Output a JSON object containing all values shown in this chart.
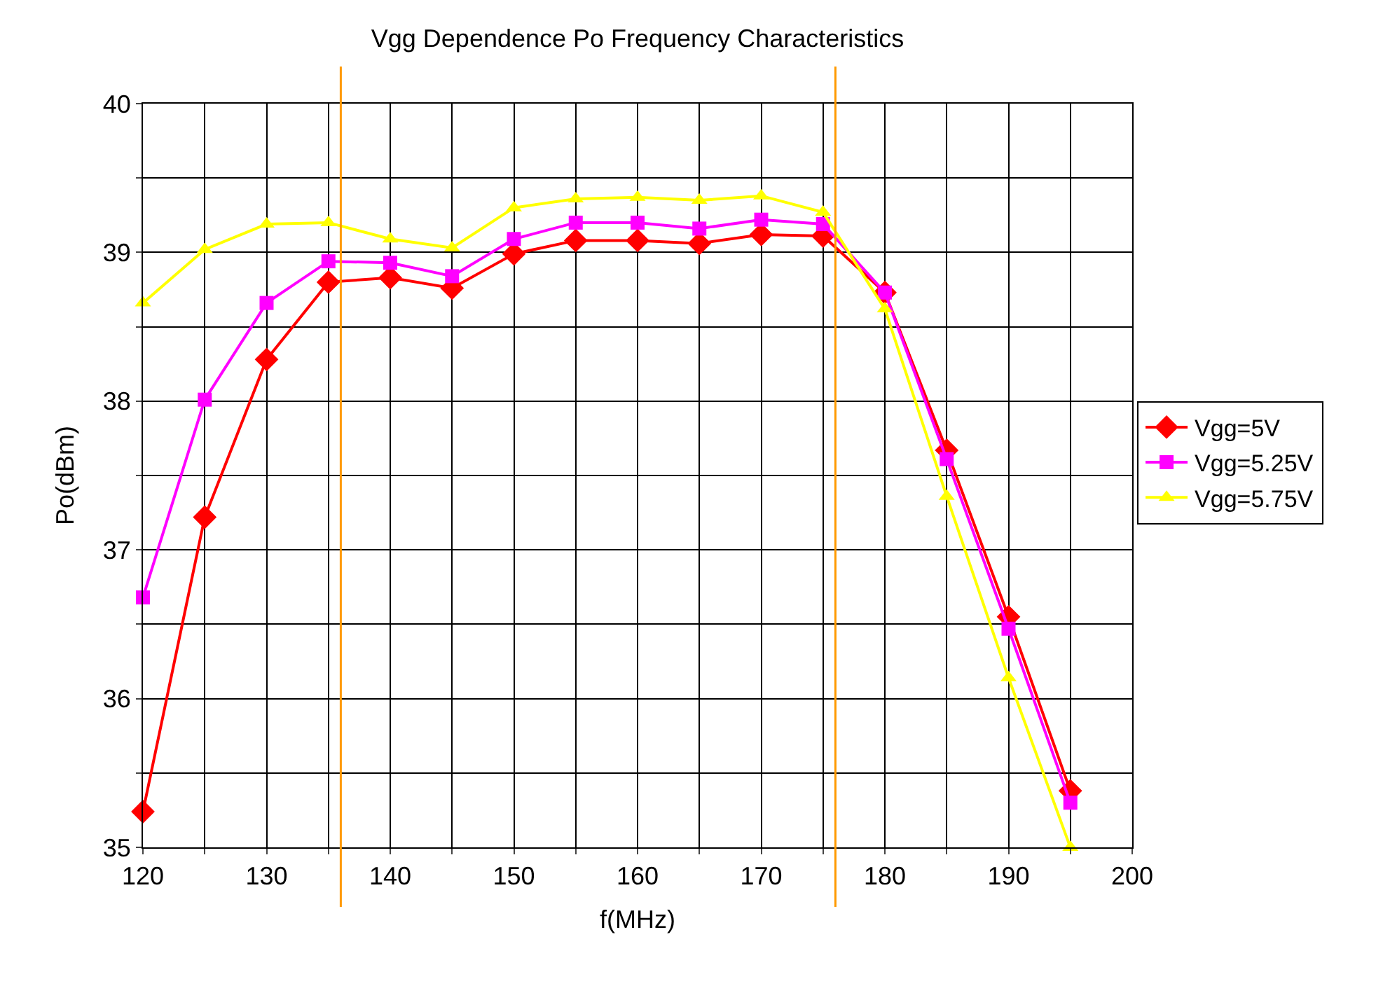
{
  "chart_data": {
    "type": "line",
    "title": "Vgg Dependence Po Frequency Characteristics",
    "xlabel": "f(MHz)",
    "ylabel": "Po(dBm)",
    "x": [
      120,
      125,
      130,
      135,
      140,
      145,
      150,
      155,
      160,
      165,
      170,
      175,
      180,
      185,
      190,
      195
    ],
    "series": [
      {
        "name": "Vgg=5V",
        "color": "#ff0000",
        "marker": "diamond",
        "values": [
          35.24,
          37.22,
          38.28,
          38.8,
          38.83,
          38.76,
          38.99,
          39.08,
          39.08,
          39.06,
          39.12,
          39.11,
          38.73,
          37.67,
          36.55,
          35.38
        ]
      },
      {
        "name": "Vgg=5.25V",
        "color": "#ff00ff",
        "marker": "square",
        "values": [
          36.68,
          38.01,
          38.66,
          38.94,
          38.93,
          38.84,
          39.09,
          39.2,
          39.2,
          39.16,
          39.22,
          39.19,
          38.73,
          37.61,
          36.47,
          35.3
        ]
      },
      {
        "name": "Vgg=5.75V",
        "color": "#ffff00",
        "marker": "triangle",
        "values": [
          38.66,
          39.02,
          39.19,
          39.2,
          39.09,
          39.03,
          39.3,
          39.36,
          39.37,
          39.35,
          39.38,
          39.27,
          38.62,
          37.36,
          36.14,
          35.0
        ]
      }
    ],
    "xlim": [
      120,
      200
    ],
    "xticks": [
      120,
      {
        "value": 125,
        "label": null
      },
      130,
      {
        "value": 135,
        "label": null
      },
      140,
      {
        "value": 145,
        "label": null
      },
      150,
      {
        "value": 155,
        "label": null
      },
      160,
      {
        "value": 165,
        "label": null
      },
      170,
      {
        "value": 175,
        "label": null
      },
      180,
      {
        "value": 185,
        "label": null
      },
      190,
      {
        "value": 195,
        "label": null
      },
      200
    ],
    "ylim": [
      35,
      40
    ],
    "yticks": [
      35,
      {
        "value": 35.5,
        "label": null
      },
      36,
      {
        "value": 36.5,
        "label": null
      },
      37,
      {
        "value": 37.5,
        "label": null
      },
      38,
      {
        "value": 38.5,
        "label": null
      },
      39,
      {
        "value": 39.5,
        "label": null
      },
      40
    ],
    "ref_lines": [
      {
        "axis": "x",
        "value": 136,
        "color": "#ff9900"
      },
      {
        "axis": "x",
        "value": 176,
        "color": "#ff9900"
      }
    ],
    "grid": true,
    "legend": "right",
    "line_style": "solid"
  }
}
